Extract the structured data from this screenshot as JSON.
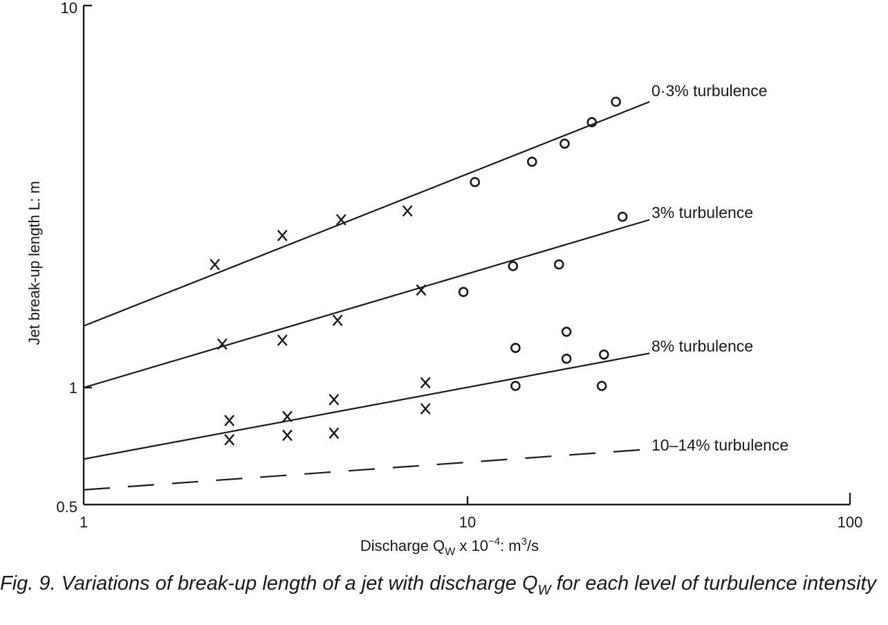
{
  "chart_data": {
    "type": "scatter",
    "xscale": "log",
    "yscale": "log",
    "xlim": [
      1,
      100
    ],
    "ylim": [
      0.5,
      10
    ],
    "x_ticks": [
      "1",
      "10",
      "100"
    ],
    "y_ticks": [
      "0.5",
      "1",
      "10"
    ],
    "xlabel": "Discharge Q",
    "xlabel_sub": "W",
    "xlabel_mid": " x 10",
    "xlabel_sup": "−4",
    "xlabel_unit": ": m",
    "xlabel_unit_sup": "3",
    "xlabel_end": "/s",
    "ylabel": "Jet break-up length L: m",
    "series": [
      {
        "name": "0·3% turbulence",
        "line": [
          [
            1,
            1.45
          ],
          [
            30,
            5.6
          ]
        ],
        "x_marks": [
          [
            2.2,
            2.1
          ],
          [
            3.3,
            2.5
          ],
          [
            4.7,
            2.75
          ],
          [
            7.0,
            2.9
          ]
        ],
        "o_marks": [
          [
            10.5,
            3.45
          ],
          [
            14.8,
            3.9
          ],
          [
            18,
            4.35
          ],
          [
            21.2,
            4.95
          ],
          [
            24.5,
            5.6
          ]
        ]
      },
      {
        "name": "3% turbulence",
        "line": [
          [
            1,
            1.0
          ],
          [
            30,
            2.75
          ]
        ],
        "x_marks": [
          [
            2.3,
            1.3
          ],
          [
            3.3,
            1.33
          ],
          [
            4.6,
            1.5
          ],
          [
            7.6,
            1.8
          ]
        ],
        "o_marks": [
          [
            9.8,
            1.78
          ],
          [
            13.2,
            2.08
          ],
          [
            17.4,
            2.1
          ],
          [
            25.5,
            2.8
          ]
        ]
      },
      {
        "name": "8% turbulence",
        "line": [
          [
            1,
            0.65
          ],
          [
            30,
            1.23
          ]
        ],
        "x_marks": [
          [
            2.4,
            0.82
          ],
          [
            2.4,
            0.73
          ],
          [
            3.4,
            0.84
          ],
          [
            3.4,
            0.75
          ],
          [
            4.5,
            0.93
          ],
          [
            4.5,
            0.76
          ],
          [
            7.8,
            1.03
          ],
          [
            7.8,
            0.88
          ]
        ],
        "o_marks": [
          [
            13.4,
            1.27
          ],
          [
            13.4,
            1.01
          ],
          [
            18.2,
            1.4
          ],
          [
            18.2,
            1.19
          ],
          [
            22.8,
            1.22
          ],
          [
            22.5,
            1.01
          ]
        ]
      },
      {
        "name": "10–14% turbulence",
        "style": "dashed",
        "line": [
          [
            1,
            0.54
          ],
          [
            30,
            0.69
          ]
        ]
      }
    ]
  },
  "caption": {
    "text": "Fig. 9. Variations of break-up length of a jet with discharge Q",
    "sub": "W",
    "text_end": " for each level of turbulence intensity"
  }
}
